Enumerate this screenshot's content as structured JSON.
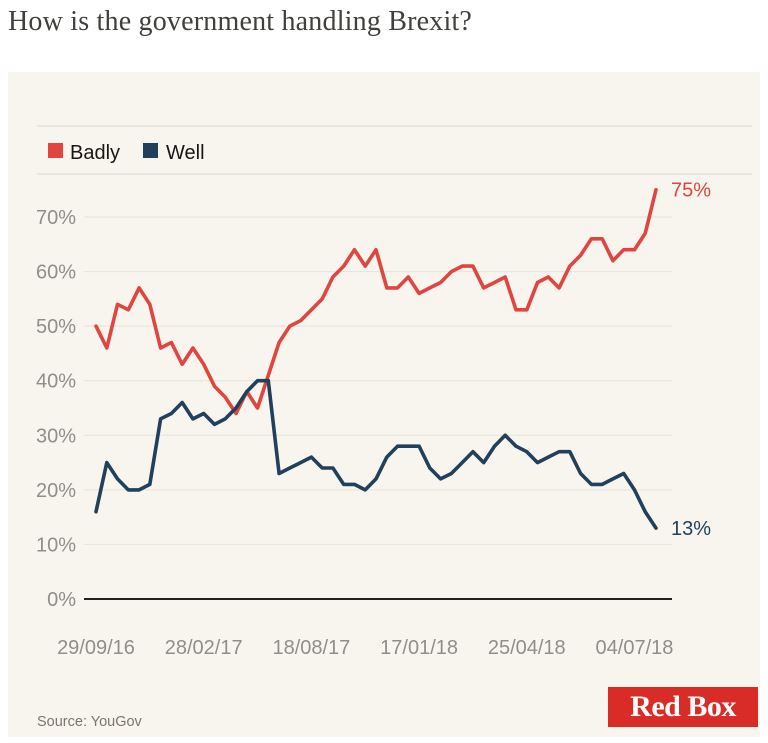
{
  "page": {
    "title": "How is the government handling Brexit?"
  },
  "colors": {
    "badly": "#e0453f",
    "well": "#21405c",
    "panel_bg": "#f8f5ee",
    "grid": "#e6e3da",
    "axis": "#23211d",
    "tick_text": "#908e89",
    "legend_rule": "#d9d6cf",
    "logo_red": "#da2c26",
    "title_text": "#42403c",
    "source_text": "#7b766d"
  },
  "legend": {
    "items": [
      {
        "label": "Badly",
        "color": "#e0453f"
      },
      {
        "label": "Well",
        "color": "#21405c"
      }
    ]
  },
  "chart_data": {
    "type": "line",
    "title": "How is the government handling Brexit?",
    "xlabel": "",
    "ylabel": "",
    "ylim": [
      0,
      78
    ],
    "grid": true,
    "legend_position": "top-left",
    "x_labels": [
      "29/09/16",
      "28/02/17",
      "18/08/17",
      "17/01/18",
      "25/04/18",
      "04/07/18"
    ],
    "x_label_indices": [
      0,
      10,
      20,
      30,
      40,
      50
    ],
    "y_ticks": [
      {
        "label": "70%",
        "value": 70
      },
      {
        "label": "60%",
        "value": 60
      },
      {
        "label": "50%",
        "value": 50
      },
      {
        "label": "40%",
        "value": 40
      },
      {
        "label": "30%",
        "value": 30
      },
      {
        "label": "20%",
        "value": 20
      },
      {
        "label": "10%",
        "value": 10
      },
      {
        "label": "0%",
        "value": 0
      }
    ],
    "series": [
      {
        "name": "Badly",
        "color": "#e0453f",
        "end_label": "75%",
        "values": [
          50,
          46,
          54,
          53,
          57,
          54,
          46,
          47,
          43,
          46,
          43,
          39,
          37,
          34,
          38,
          35,
          41,
          47,
          50,
          51,
          53,
          55,
          59,
          61,
          64,
          61,
          64,
          57,
          57,
          59,
          56,
          57,
          58,
          60,
          61,
          61,
          57,
          58,
          59,
          53,
          53,
          58,
          59,
          57,
          61,
          63,
          66,
          66,
          62,
          64,
          64,
          67,
          75
        ]
      },
      {
        "name": "Well",
        "color": "#21405c",
        "end_label": "13%",
        "values": [
          16,
          25,
          22,
          20,
          20,
          21,
          33,
          34,
          36,
          33,
          34,
          32,
          33,
          35,
          38,
          40,
          40,
          23,
          24,
          25,
          26,
          24,
          24,
          21,
          21,
          20,
          22,
          26,
          28,
          28,
          28,
          24,
          22,
          23,
          25,
          27,
          25,
          28,
          30,
          28,
          27,
          25,
          26,
          27,
          27,
          23,
          21,
          21,
          22,
          23,
          20,
          16,
          13
        ]
      }
    ]
  },
  "footer": {
    "source": "Source: YouGov",
    "logo": "Red Box"
  }
}
